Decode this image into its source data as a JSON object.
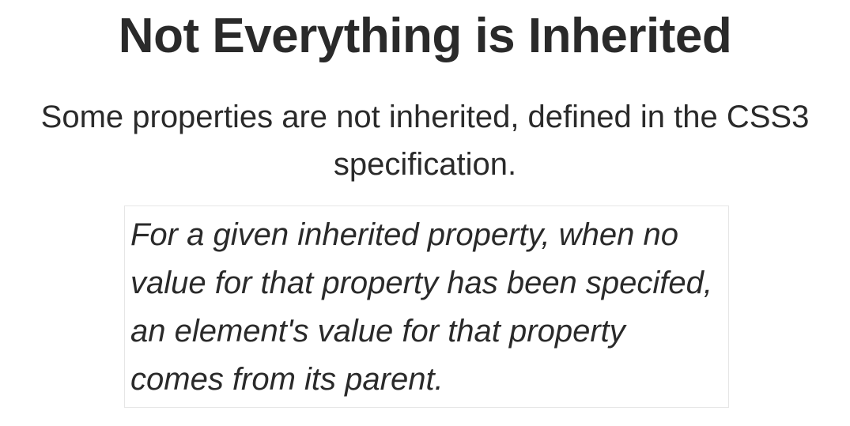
{
  "slide": {
    "title": "Not Everything is Inherited",
    "subtitle": "Some properties are not inherited, defined in the CSS3 specification.",
    "quote": "For a given inherited property, when no value for that property has been specifed, an element's value for that property comes from its parent."
  }
}
